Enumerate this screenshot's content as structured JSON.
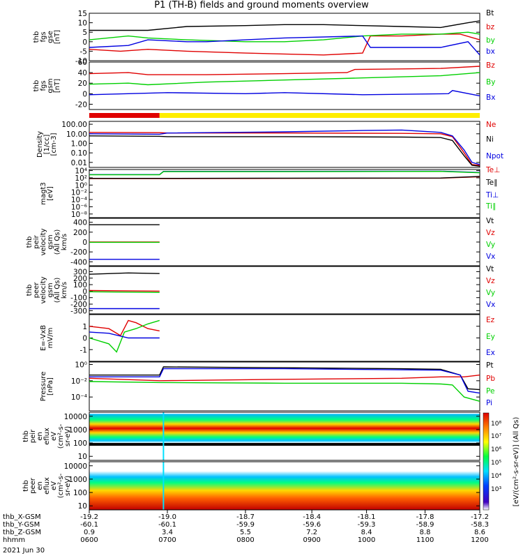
{
  "title": "P1 (TH-B) fields and ground moments overview",
  "colors": {
    "black": "#000000",
    "red": "#e00000",
    "green": "#00d000",
    "blue": "#0000e0",
    "yellow": "#ffee00"
  },
  "chart_data": [
    {
      "id": "fgs_gse",
      "type": "line",
      "ylabel": [
        "thb",
        "fgs",
        "gse",
        "[nT]"
      ],
      "ylim": [
        -10,
        15
      ],
      "log": false,
      "ticks": [
        "15",
        "10",
        "5",
        "0",
        "-5",
        "-10"
      ],
      "tickvals": [
        15,
        10,
        5,
        0,
        -5,
        -10
      ],
      "series": [
        {
          "name": "Bt",
          "color": "#000000",
          "x": [
            0,
            0.15,
            0.25,
            0.4,
            0.5,
            0.6,
            0.7,
            0.8,
            0.9,
            0.97,
            1.0
          ],
          "y": [
            6,
            6,
            8,
            8.5,
            9,
            9,
            8.5,
            8,
            7.5,
            10,
            11
          ]
        },
        {
          "name": "bz",
          "color": "#e00000",
          "x": [
            0,
            0.08,
            0.15,
            0.25,
            0.4,
            0.6,
            0.7,
            0.72,
            0.8,
            0.9,
            0.95,
            1.0
          ],
          "y": [
            -4,
            -5,
            -4,
            -5,
            -6,
            -7,
            -6,
            3,
            3,
            4,
            4,
            1
          ]
        },
        {
          "name": "by",
          "color": "#00d000",
          "x": [
            0,
            0.1,
            0.15,
            0.25,
            0.4,
            0.5,
            0.6,
            0.7,
            0.8,
            0.9,
            0.97,
            1.0
          ],
          "y": [
            1,
            3,
            2,
            1,
            0,
            0,
            1,
            3,
            4,
            4,
            5,
            4
          ]
        },
        {
          "name": "bx",
          "color": "#0000e0",
          "x": [
            0,
            0.1,
            0.15,
            0.25,
            0.3,
            0.4,
            0.5,
            0.7,
            0.72,
            0.9,
            0.97,
            1.0
          ],
          "y": [
            -3,
            -2,
            1,
            0,
            0,
            1,
            2,
            3,
            -3,
            -3,
            0,
            -7
          ]
        }
      ]
    },
    {
      "id": "fgs_gsm",
      "type": "line",
      "ylabel": [
        "thb",
        "fgs",
        "gsm",
        "[nT]"
      ],
      "ylim": [
        -30,
        60
      ],
      "log": false,
      "ticks": [
        "60",
        "40",
        "20",
        "0",
        "-20"
      ],
      "tickvals": [
        60,
        40,
        20,
        0,
        -20
      ],
      "series": [
        {
          "name": "Bz",
          "color": "#e00000",
          "x": [
            0,
            0.1,
            0.15,
            0.3,
            0.5,
            0.66,
            0.68,
            0.8,
            0.9,
            1.0
          ],
          "y": [
            38,
            40,
            36,
            36,
            38,
            40,
            46,
            47,
            48,
            52
          ]
        },
        {
          "name": "By",
          "color": "#00d000",
          "x": [
            0,
            0.1,
            0.15,
            0.3,
            0.5,
            0.7,
            0.9,
            1.0
          ],
          "y": [
            18,
            20,
            17,
            22,
            26,
            30,
            34,
            40
          ]
        },
        {
          "name": "Bx",
          "color": "#0000e0",
          "x": [
            0,
            0.2,
            0.4,
            0.5,
            0.7,
            0.92,
            0.93,
            1.0
          ],
          "y": [
            -2,
            2,
            0,
            2,
            -2,
            0,
            6,
            -4
          ]
        }
      ]
    },
    {
      "id": "mode_bar",
      "type": "bar",
      "segments": [
        {
          "start": 0,
          "end": 0.18,
          "color": "#e00000"
        },
        {
          "start": 0.18,
          "end": 1,
          "color": "#ffee00"
        }
      ]
    },
    {
      "id": "density",
      "type": "line",
      "ylabel": [
        "Density",
        "[1/cc]",
        "[cm-3]"
      ],
      "ylim": [
        0.003,
        200
      ],
      "log": true,
      "ticks": [
        "100.00",
        "10.00",
        "1.00",
        "0.10",
        "0.01"
      ],
      "tickvals": [
        100,
        10,
        1,
        0.1,
        0.01
      ],
      "series": [
        {
          "name": "Ne",
          "color": "#e00000",
          "x": [
            0,
            0.18,
            0.2,
            0.5,
            0.8,
            0.9,
            0.93,
            0.96,
            0.98,
            1.0
          ],
          "y": [
            14,
            13,
            12,
            12,
            11,
            10,
            5,
            0.1,
            0.006,
            0.005
          ]
        },
        {
          "name": "Ni",
          "color": "#000000",
          "x": [
            0,
            0.18,
            0.2,
            0.5,
            0.8,
            0.9,
            0.93,
            0.96,
            0.98,
            1.0
          ],
          "y": [
            6,
            5.5,
            5,
            5,
            4.5,
            4,
            2,
            0.05,
            0.005,
            0.004
          ]
        },
        {
          "name": "Npot",
          "color": "#0000e0",
          "x": [
            0,
            0.18,
            0.2,
            0.5,
            0.7,
            0.8,
            0.9,
            0.93,
            0.96,
            0.98,
            1.0
          ],
          "y": [
            10,
            9,
            12,
            16,
            22,
            25,
            14,
            6,
            0.2,
            0.01,
            0.006
          ]
        }
      ]
    },
    {
      "id": "temp",
      "type": "line",
      "ylabel": [
        "magt3",
        "[eV]"
      ],
      "ylim": [
        1e-09,
        20000
      ],
      "log": true,
      "ticks": [
        "10⁴",
        "10²",
        "10⁰",
        "10⁻²",
        "10⁻⁴",
        "10⁻⁶",
        "10⁻⁸"
      ],
      "tickvals": [
        10000,
        100,
        1,
        0.01,
        0.0001,
        1e-06,
        1e-08
      ],
      "series": [
        {
          "name": "Te⊥",
          "color": "#e00000",
          "x": [
            0,
            0.2,
            0.5,
            0.9,
            1.0
          ],
          "y": [
            60,
            60,
            70,
            80,
            200
          ]
        },
        {
          "name": "Te∥",
          "color": "#000000",
          "x": [
            0,
            0.2,
            0.5,
            0.9,
            1.0
          ],
          "y": [
            70,
            70,
            80,
            90,
            250
          ]
        },
        {
          "name": "Ti⊥",
          "color": "#0000e0",
          "x": [
            0,
            0.18,
            0.19,
            0.5,
            0.9,
            1.0
          ],
          "y": [
            800,
            800,
            6000,
            6000,
            7000,
            3000
          ]
        },
        {
          "name": "Ti∥",
          "color": "#00d000",
          "x": [
            0,
            0.18,
            0.19,
            0.5,
            0.9,
            1.0
          ],
          "y": [
            700,
            700,
            5000,
            5000,
            6000,
            2500
          ]
        }
      ]
    },
    {
      "id": "peir_vel",
      "type": "line",
      "ylabel": [
        "thb",
        "peir",
        "velocity",
        "gsm",
        "(All Qs)",
        "km/s"
      ],
      "ylim": [
        -480,
        480
      ],
      "log": false,
      "ticks": [
        "400",
        "200",
        "0",
        "-200",
        "-400"
      ],
      "tickvals": [
        400,
        200,
        0,
        -200,
        -400
      ],
      "series": [
        {
          "name": "Vt",
          "color": "#000000",
          "x": [
            0,
            0.18
          ],
          "y": [
            350,
            350
          ]
        },
        {
          "name": "Vz",
          "color": "#e00000",
          "x": [
            0,
            0.18
          ],
          "y": [
            0,
            0
          ]
        },
        {
          "name": "Vy",
          "color": "#00d000",
          "x": [
            0,
            0.18
          ],
          "y": [
            -5,
            -5
          ]
        },
        {
          "name": "Vx",
          "color": "#0000e0",
          "x": [
            0,
            0.18
          ],
          "y": [
            -350,
            -350
          ]
        }
      ]
    },
    {
      "id": "peer_vel",
      "type": "line",
      "ylabel": [
        "thb",
        "peer",
        "velocity",
        "gsm",
        "(All Qs)",
        "km/s"
      ],
      "ylim": [
        -350,
        380
      ],
      "log": false,
      "ticks": [
        "300",
        "200",
        "100",
        "0",
        "-100",
        "-200",
        "-300"
      ],
      "tickvals": [
        300,
        200,
        100,
        0,
        -100,
        -200,
        -300
      ],
      "series": [
        {
          "name": "Vt",
          "color": "#000000",
          "x": [
            0,
            0.1,
            0.18
          ],
          "y": [
            260,
            280,
            270
          ]
        },
        {
          "name": "Vz",
          "color": "#e00000",
          "x": [
            0,
            0.18
          ],
          "y": [
            10,
            0
          ]
        },
        {
          "name": "Vy",
          "color": "#00d000",
          "x": [
            0,
            0.18
          ],
          "y": [
            -10,
            -20
          ]
        },
        {
          "name": "Vx",
          "color": "#0000e0",
          "x": [
            0,
            0.18
          ],
          "y": [
            -270,
            -270
          ]
        }
      ]
    },
    {
      "id": "efield",
      "type": "line",
      "ylabel": [
        "E=-VxB",
        "mV/m"
      ],
      "ylim": [
        -2,
        2
      ],
      "log": false,
      "ticks": [
        "1",
        "0",
        "-1"
      ],
      "tickvals": [
        1,
        0,
        -1
      ],
      "series": [
        {
          "name": "Ez",
          "color": "#e00000",
          "x": [
            0,
            0.05,
            0.08,
            0.1,
            0.12,
            0.15,
            0.18
          ],
          "y": [
            1,
            0.8,
            0.2,
            1.5,
            1.3,
            0.8,
            0.6
          ]
        },
        {
          "name": "Ey",
          "color": "#00d000",
          "x": [
            0,
            0.05,
            0.07,
            0.09,
            0.12,
            0.15,
            0.18
          ],
          "y": [
            0,
            -0.5,
            -1.2,
            0.5,
            0.8,
            1.2,
            1.5
          ]
        },
        {
          "name": "Ex",
          "color": "#0000e0",
          "x": [
            0,
            0.05,
            0.1,
            0.12,
            0.18
          ],
          "y": [
            0.5,
            0.4,
            0,
            0,
            0
          ]
        }
      ]
    },
    {
      "id": "pressure",
      "type": "line",
      "ylabel": [
        "Pressure",
        "[nPa]"
      ],
      "ylim": [
        2e-06,
        2
      ],
      "log": true,
      "ticks": [
        "10⁰",
        "10⁻²",
        "10⁻⁴",
        "10⁻⁶"
      ],
      "tickvals": [
        1,
        0.01,
        0.0001,
        1e-06
      ],
      "series": [
        {
          "name": "Pt",
          "color": "#000000",
          "x": [
            0,
            0.18,
            0.19,
            0.5,
            0.8,
            0.9,
            0.95,
            0.97,
            1.0
          ],
          "y": [
            0.05,
            0.05,
            0.5,
            0.4,
            0.3,
            0.25,
            0.05,
            0.001,
            0.0008
          ]
        },
        {
          "name": "Pb",
          "color": "#e00000",
          "x": [
            0,
            0.18,
            0.5,
            0.8,
            0.9,
            0.96,
            1.0
          ],
          "y": [
            0.02,
            0.01,
            0.015,
            0.02,
            0.03,
            0.03,
            0.05
          ]
        },
        {
          "name": "Pe",
          "color": "#00d000",
          "x": [
            0,
            0.18,
            0.5,
            0.8,
            0.9,
            0.93,
            0.96,
            1.0
          ],
          "y": [
            0.008,
            0.006,
            0.005,
            0.005,
            0.004,
            0.003,
            0.0001,
            3e-05
          ]
        },
        {
          "name": "Pi",
          "color": "#0000e0",
          "x": [
            0,
            0.18,
            0.19,
            0.5,
            0.9,
            0.95,
            0.97,
            1.0
          ],
          "y": [
            0.03,
            0.03,
            0.3,
            0.3,
            0.2,
            0.05,
            0.0005,
            0.0003
          ]
        }
      ]
    },
    {
      "id": "peir_spec",
      "type": "heatmap",
      "ylabel": [
        "thb",
        "peir",
        "en",
        "eflux",
        "eV",
        "(cm²-s-",
        "sr-eV)"
      ],
      "ylim": [
        5,
        20000
      ],
      "log": true,
      "ticks": [
        "10000",
        "1000",
        "100",
        "10"
      ],
      "tickvals": [
        10000,
        1000,
        100,
        10
      ],
      "colorbar_label": "[eV/(cm²-s-sr-eV)] (All Qs)"
    },
    {
      "id": "peer_spec",
      "type": "heatmap",
      "ylabel": [
        "thb",
        "peer",
        "en",
        "eflux",
        "eV",
        "(cm²-s-",
        "sr-eV)"
      ],
      "ylim": [
        5,
        20000
      ],
      "log": true,
      "ticks": [
        "10000",
        "1000",
        "100",
        "10"
      ],
      "tickvals": [
        10000,
        1000,
        100,
        10
      ],
      "colorbar_label": "[eV/(cm²-s-sr-eV)] (All Qs)"
    }
  ],
  "colorbar": {
    "ticks": [
      "10⁸",
      "10⁷",
      "10⁶",
      "10⁵",
      "10⁴",
      "10³"
    ],
    "label": "[eV/(cm²-s-sr-eV)]",
    "label2": "(All Qs)"
  },
  "xaxis": {
    "rows": [
      {
        "label": "thb_X-GSM",
        "values": [
          "-19.2",
          "-19.0",
          "-18.7",
          "-18.4",
          "-18.1",
          "-17.8",
          "-17.2"
        ]
      },
      {
        "label": "thb_Y-GSM",
        "values": [
          "-60.1",
          "-60.1",
          "-59.9",
          "-59.6",
          "-59.3",
          "-58.9",
          "-58.3"
        ]
      },
      {
        "label": "thb_Z-GSM",
        "values": [
          "0.9",
          "3.4",
          "5.5",
          "7.2",
          "8.4",
          "8.8",
          "8.6"
        ]
      },
      {
        "label": "hhmm",
        "values": [
          "0600",
          "0700",
          "0800",
          "0900",
          "1000",
          "1100",
          "1200"
        ]
      }
    ],
    "date": "2021 Jun 30"
  }
}
